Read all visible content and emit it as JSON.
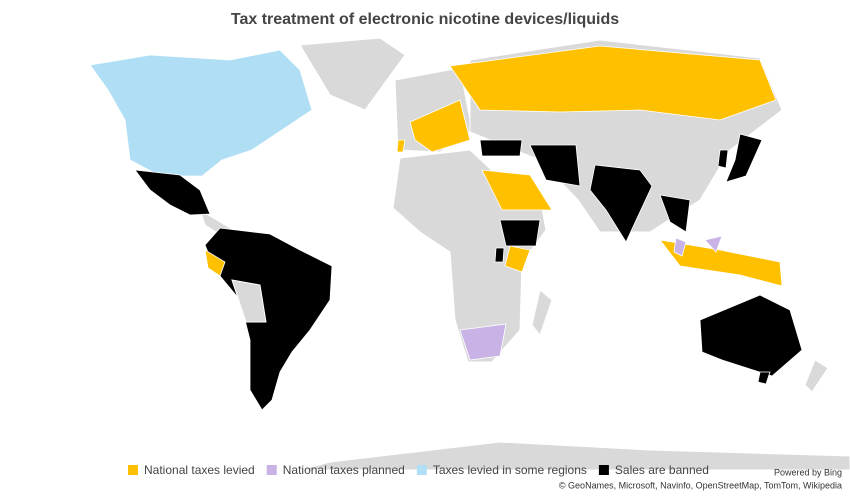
{
  "title": "Tax treatment of electronic nicotine devices/liquids",
  "legend": [
    {
      "name": "National taxes levied",
      "color": "#ffc000"
    },
    {
      "name": "National taxes planned",
      "color": "#c9b3e6"
    },
    {
      "name": "Taxes levied in some regions",
      "color": "#b0dff5"
    },
    {
      "name": "Sales are banned",
      "color": "#000000"
    }
  ],
  "credits": {
    "powered": "Powered by Bing",
    "attribution": "© GeoNames, Microsoft, Navinfo, OpenStreetMap, TomTom, Wikipedia"
  }
}
